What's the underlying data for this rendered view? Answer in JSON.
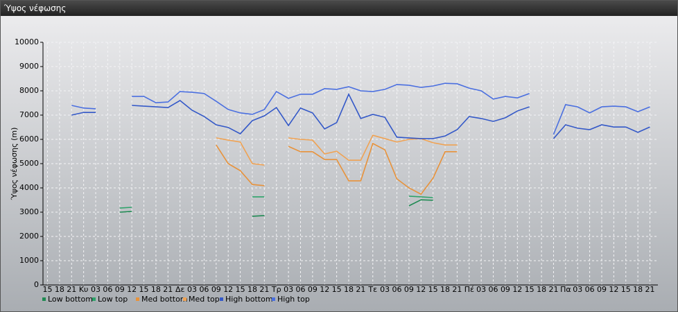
{
  "window_title": "Ύψος νέφωσης",
  "chart_data": {
    "type": "line",
    "y_label": "Ύψος νέφωσης (m)",
    "categories": [
      "15",
      "18",
      "21",
      "Κυ",
      "03",
      "06",
      "09",
      "12",
      "15",
      "18",
      "21",
      "Δε",
      "03",
      "06",
      "09",
      "12",
      "15",
      "18",
      "21",
      "Τρ",
      "03",
      "06",
      "09",
      "12",
      "15",
      "18",
      "21",
      "Τε",
      "03",
      "06",
      "09",
      "12",
      "15",
      "18",
      "21",
      "Πέ",
      "03",
      "06",
      "09",
      "12",
      "15",
      "18",
      "21",
      "Πα",
      "03",
      "06",
      "09",
      "12",
      "15",
      "18",
      "21"
    ],
    "ylim": [
      0,
      10000
    ],
    "yticks": [
      0,
      1000,
      2000,
      3000,
      4000,
      5000,
      6000,
      7000,
      8000,
      9000,
      10000
    ],
    "grid": true,
    "series": [
      {
        "name": "Low bottom",
        "color": "#1f8a52",
        "values": [
          null,
          null,
          null,
          null,
          null,
          null,
          3000,
          3030,
          null,
          null,
          null,
          null,
          null,
          null,
          null,
          null,
          null,
          2830,
          2860,
          null,
          null,
          null,
          null,
          null,
          null,
          null,
          null,
          null,
          null,
          null,
          3260,
          3510,
          3490,
          null,
          null,
          null,
          null,
          null,
          null,
          null,
          null,
          null,
          null,
          null,
          null,
          null,
          null,
          null,
          null,
          null,
          null
        ]
      },
      {
        "name": "Low top",
        "color": "#2ea36a",
        "values": [
          null,
          null,
          null,
          null,
          null,
          null,
          3170,
          3200,
          null,
          null,
          null,
          null,
          null,
          null,
          null,
          null,
          null,
          3630,
          3630,
          null,
          null,
          null,
          null,
          null,
          null,
          null,
          null,
          null,
          null,
          null,
          3660,
          3630,
          3600,
          null,
          null,
          null,
          null,
          null,
          null,
          null,
          null,
          null,
          null,
          null,
          null,
          null,
          null,
          null,
          null,
          null,
          null
        ]
      },
      {
        "name": "Med bottom",
        "color": "#e8923a",
        "values": [
          null,
          null,
          null,
          null,
          null,
          null,
          null,
          null,
          null,
          null,
          null,
          null,
          null,
          null,
          5770,
          5000,
          4710,
          4140,
          4090,
          null,
          5710,
          5490,
          5490,
          5170,
          5170,
          4290,
          4290,
          5830,
          5570,
          4370,
          4000,
          3740,
          4400,
          5490,
          5490,
          null,
          null,
          null,
          null,
          null,
          null,
          null,
          null,
          null,
          null,
          null,
          null,
          null,
          null,
          null,
          null
        ]
      },
      {
        "name": "Med top",
        "color": "#f0a252",
        "values": [
          null,
          null,
          null,
          null,
          null,
          null,
          null,
          null,
          null,
          null,
          null,
          null,
          null,
          null,
          6060,
          5970,
          5890,
          5000,
          4940,
          null,
          6060,
          6000,
          5970,
          5400,
          5510,
          5140,
          5140,
          6170,
          6030,
          5890,
          6000,
          6030,
          5860,
          5770,
          5770,
          null,
          null,
          null,
          null,
          null,
          null,
          null,
          null,
          null,
          null,
          null,
          null,
          null,
          null,
          null,
          null
        ]
      },
      {
        "name": "High bottom",
        "color": "#3358c8",
        "values": [
          null,
          null,
          7000,
          7110,
          7110,
          null,
          null,
          7400,
          7370,
          7340,
          7310,
          7600,
          7200,
          6940,
          6600,
          6490,
          6230,
          6770,
          6970,
          7310,
          6570,
          7290,
          7090,
          6430,
          6690,
          7860,
          6860,
          7030,
          6910,
          6090,
          6060,
          6030,
          6030,
          6140,
          6400,
          6940,
          6860,
          6740,
          6890,
          7170,
          7340,
          null,
          6030,
          6600,
          6460,
          6400,
          6600,
          6510,
          6510,
          6290,
          6510
        ]
      },
      {
        "name": "High top",
        "color": "#4a6fe0",
        "values": [
          null,
          null,
          7400,
          7290,
          7260,
          null,
          null,
          7770,
          7770,
          7510,
          7540,
          7970,
          7940,
          7890,
          7570,
          7230,
          7090,
          7030,
          7230,
          7970,
          7690,
          7860,
          7860,
          8090,
          8060,
          8170,
          8000,
          7970,
          8060,
          8260,
          8230,
          8140,
          8200,
          8310,
          8290,
          8110,
          8000,
          7660,
          7770,
          7710,
          7890,
          null,
          6200,
          7430,
          7340,
          7090,
          7340,
          7370,
          7340,
          7140,
          7340
        ]
      }
    ]
  }
}
